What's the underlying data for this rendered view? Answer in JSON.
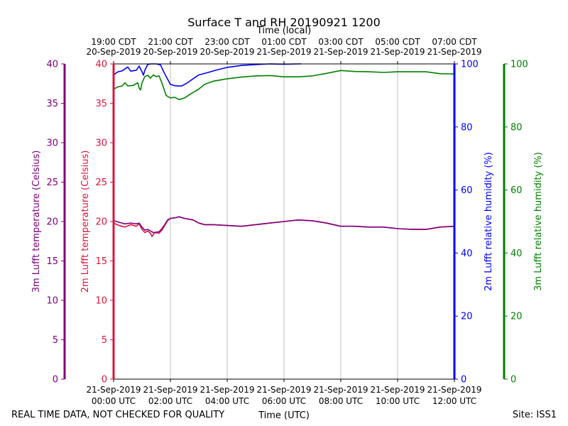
{
  "chart_data": {
    "type": "line",
    "title": "Surface T and RH 20190921 1200",
    "top_axis_label": "Time (local)",
    "xlabel": "Time (UTC)",
    "footer_left": "REAL TIME DATA, NOT CHECKED FOR QUALITY",
    "footer_right": "Site: ISS1",
    "xlim": [
      0,
      12
    ],
    "x_ticks_utc": [
      {
        "x": 0,
        "date": "21-Sep-2019",
        "time": "00:00 UTC"
      },
      {
        "x": 2,
        "date": "21-Sep-2019",
        "time": "02:00 UTC"
      },
      {
        "x": 4,
        "date": "21-Sep-2019",
        "time": "04:00 UTC"
      },
      {
        "x": 6,
        "date": "21-Sep-2019",
        "time": "06:00 UTC"
      },
      {
        "x": 8,
        "date": "21-Sep-2019",
        "time": "08:00 UTC"
      },
      {
        "x": 10,
        "date": "21-Sep-2019",
        "time": "10:00 UTC"
      },
      {
        "x": 12,
        "date": "21-Sep-2019",
        "time": "12:00 UTC"
      }
    ],
    "x_ticks_local": [
      {
        "x": 0,
        "time": "19:00 CDT",
        "date": "20-Sep-2019"
      },
      {
        "x": 2,
        "time": "21:00 CDT",
        "date": "20-Sep-2019"
      },
      {
        "x": 4,
        "time": "23:00 CDT",
        "date": "20-Sep-2019"
      },
      {
        "x": 6,
        "time": "01:00 CDT",
        "date": "21-Sep-2019"
      },
      {
        "x": 8,
        "time": "03:00 CDT",
        "date": "21-Sep-2019"
      },
      {
        "x": 10,
        "time": "05:00 CDT",
        "date": "21-Sep-2019"
      },
      {
        "x": 12,
        "time": "07:00 CDT",
        "date": "21-Sep-2019"
      }
    ],
    "axes": {
      "t3m": {
        "label": "3m Lufft temperature (Celsius)",
        "ylim": [
          0,
          40
        ],
        "ticks": [
          0,
          5,
          10,
          15,
          20,
          25,
          30,
          35,
          40
        ],
        "color": "#800080"
      },
      "t2m": {
        "label": "2m Lufft temperature (Celsius)",
        "ylim": [
          0,
          40
        ],
        "ticks": [
          0,
          5,
          10,
          15,
          20,
          25,
          30,
          35,
          40
        ],
        "color": "#dc143c"
      },
      "rh2m": {
        "label": "2m Lufft relative humidity (%)",
        "ylim": [
          0,
          100
        ],
        "ticks": [
          0,
          20,
          40,
          60,
          80,
          100
        ],
        "color": "#0000ff"
      },
      "rh3m": {
        "label": "3m Lufft relative humidity (%)",
        "ylim": [
          0,
          100
        ],
        "ticks": [
          0,
          20,
          40,
          60,
          80,
          100
        ],
        "color": "#008000"
      }
    },
    "series": [
      {
        "name": "2m temperature",
        "axis": "t2m",
        "color": "#dc143c",
        "points": [
          [
            0,
            19.8
          ],
          [
            0.2,
            19.5
          ],
          [
            0.4,
            19.3
          ],
          [
            0.6,
            19.6
          ],
          [
            0.8,
            19.4
          ],
          [
            0.9,
            19.7
          ],
          [
            1.0,
            19.0
          ],
          [
            1.1,
            18.6
          ],
          [
            1.2,
            18.8
          ],
          [
            1.3,
            18.5
          ],
          [
            1.35,
            18.1
          ],
          [
            1.45,
            18.6
          ],
          [
            1.6,
            18.5
          ],
          [
            1.7,
            18.9
          ],
          [
            1.8,
            19.5
          ],
          [
            1.9,
            20.1
          ],
          [
            2.0,
            20.4
          ],
          [
            2.2,
            20.5
          ],
          [
            2.3,
            20.6
          ],
          [
            2.5,
            20.4
          ],
          [
            2.8,
            20.2
          ],
          [
            3.0,
            19.8
          ],
          [
            3.2,
            19.6
          ],
          [
            3.5,
            19.6
          ],
          [
            4.0,
            19.5
          ],
          [
            4.5,
            19.4
          ],
          [
            5.0,
            19.6
          ],
          [
            5.5,
            19.8
          ],
          [
            6.0,
            20.0
          ],
          [
            6.5,
            20.2
          ],
          [
            7.0,
            20.1
          ],
          [
            7.5,
            19.8
          ],
          [
            8.0,
            19.4
          ],
          [
            8.5,
            19.4
          ],
          [
            9.0,
            19.3
          ],
          [
            9.5,
            19.3
          ],
          [
            10.0,
            19.1
          ],
          [
            10.5,
            19.0
          ],
          [
            11.0,
            19.0
          ],
          [
            11.5,
            19.3
          ],
          [
            12.0,
            19.4
          ]
        ]
      },
      {
        "name": "3m temperature",
        "axis": "t3m",
        "color": "#800080",
        "points": [
          [
            0,
            20.1
          ],
          [
            0.2,
            19.9
          ],
          [
            0.4,
            19.7
          ],
          [
            0.6,
            19.8
          ],
          [
            0.8,
            19.7
          ],
          [
            0.9,
            19.8
          ],
          [
            1.0,
            19.3
          ],
          [
            1.1,
            18.9
          ],
          [
            1.2,
            19.0
          ],
          [
            1.3,
            18.8
          ],
          [
            1.4,
            18.6
          ],
          [
            1.6,
            18.7
          ],
          [
            1.7,
            19.1
          ],
          [
            1.8,
            19.6
          ],
          [
            1.9,
            20.2
          ],
          [
            2.0,
            20.4
          ],
          [
            2.2,
            20.5
          ],
          [
            2.3,
            20.6
          ],
          [
            2.5,
            20.4
          ],
          [
            2.8,
            20.2
          ],
          [
            3.0,
            19.8
          ],
          [
            3.2,
            19.6
          ],
          [
            3.5,
            19.6
          ],
          [
            4.0,
            19.5
          ],
          [
            4.5,
            19.4
          ],
          [
            5.0,
            19.6
          ],
          [
            5.5,
            19.8
          ],
          [
            6.0,
            20.0
          ],
          [
            6.5,
            20.2
          ],
          [
            7.0,
            20.1
          ],
          [
            7.5,
            19.8
          ],
          [
            8.0,
            19.4
          ],
          [
            8.5,
            19.4
          ],
          [
            9.0,
            19.3
          ],
          [
            9.5,
            19.3
          ],
          [
            10.0,
            19.1
          ],
          [
            10.5,
            19.0
          ],
          [
            11.0,
            19.0
          ],
          [
            11.5,
            19.3
          ],
          [
            12.0,
            19.4
          ]
        ]
      },
      {
        "name": "2m relative humidity",
        "axis": "rh2m",
        "color": "#0000ff",
        "points": [
          [
            0,
            96.5
          ],
          [
            0.15,
            97.5
          ],
          [
            0.3,
            97.8
          ],
          [
            0.5,
            99.0
          ],
          [
            0.6,
            97.7
          ],
          [
            0.8,
            98.0
          ],
          [
            0.9,
            99.3
          ],
          [
            1.0,
            97.5
          ],
          [
            1.05,
            96.4
          ],
          [
            1.1,
            98.0
          ],
          [
            1.2,
            99.8
          ],
          [
            1.3,
            100.0
          ],
          [
            1.5,
            100.0
          ],
          [
            1.65,
            99.7
          ],
          [
            1.75,
            97.8
          ],
          [
            1.85,
            96.0
          ],
          [
            2.0,
            93.5
          ],
          [
            2.2,
            93.0
          ],
          [
            2.4,
            93.0
          ],
          [
            2.6,
            94.0
          ],
          [
            2.8,
            95.3
          ],
          [
            3.0,
            96.5
          ],
          [
            3.3,
            97.2
          ],
          [
            3.6,
            98.0
          ],
          [
            4.0,
            98.9
          ],
          [
            4.5,
            99.5
          ],
          [
            5.0,
            99.8
          ],
          [
            5.5,
            100.0
          ],
          [
            6.0,
            99.9
          ],
          [
            6.5,
            100.0
          ],
          [
            6.6,
            100.0
          ]
        ]
      },
      {
        "name": "3m relative humidity",
        "axis": "rh3m",
        "color": "#008000",
        "points": [
          [
            0,
            92.0
          ],
          [
            0.15,
            92.7
          ],
          [
            0.3,
            93.0
          ],
          [
            0.4,
            94.0
          ],
          [
            0.5,
            93.0
          ],
          [
            0.7,
            93.2
          ],
          [
            0.85,
            94.0
          ],
          [
            0.9,
            92.3
          ],
          [
            0.95,
            91.7
          ],
          [
            1.0,
            94.0
          ],
          [
            1.1,
            96.0
          ],
          [
            1.2,
            96.4
          ],
          [
            1.3,
            95.5
          ],
          [
            1.4,
            96.5
          ],
          [
            1.5,
            96.0
          ],
          [
            1.6,
            96.2
          ],
          [
            1.7,
            94.0
          ],
          [
            1.85,
            90.0
          ],
          [
            2.0,
            89.2
          ],
          [
            2.15,
            89.4
          ],
          [
            2.3,
            88.7
          ],
          [
            2.5,
            89.2
          ],
          [
            2.7,
            90.4
          ],
          [
            3.0,
            92.0
          ],
          [
            3.2,
            93.5
          ],
          [
            3.5,
            94.5
          ],
          [
            4.0,
            95.3
          ],
          [
            4.5,
            95.8
          ],
          [
            5.0,
            96.2
          ],
          [
            5.5,
            96.3
          ],
          [
            6.0,
            95.9
          ],
          [
            6.5,
            95.9
          ],
          [
            7.0,
            96.2
          ],
          [
            7.5,
            97.0
          ],
          [
            8.0,
            97.9
          ],
          [
            8.5,
            97.6
          ],
          [
            9.0,
            97.5
          ],
          [
            9.5,
            97.3
          ],
          [
            10.0,
            97.5
          ],
          [
            10.5,
            97.5
          ],
          [
            11.0,
            97.5
          ],
          [
            11.5,
            96.9
          ],
          [
            12.0,
            96.8
          ]
        ]
      }
    ]
  }
}
